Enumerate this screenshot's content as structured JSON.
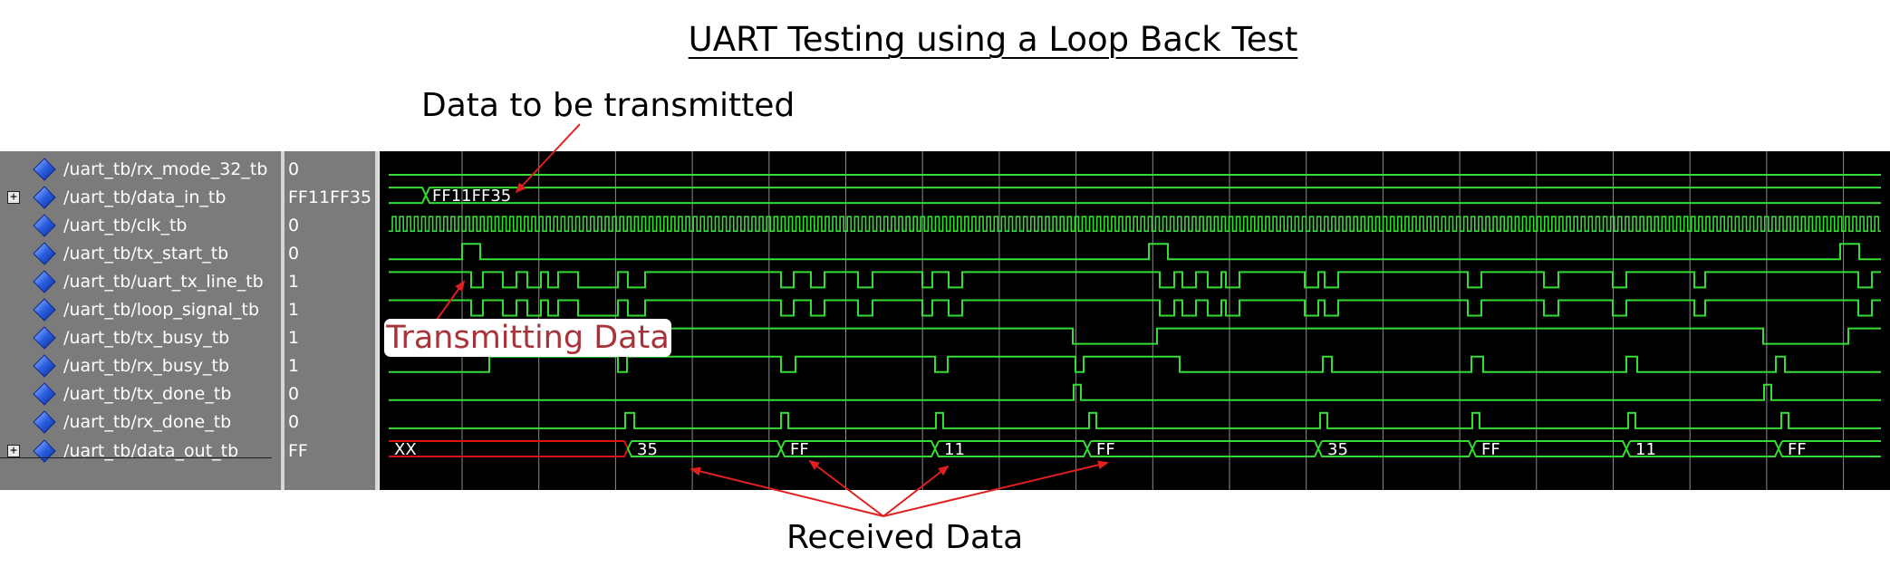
{
  "title": "UART Testing using a Loop Back Test",
  "annotations": {
    "data_to_transmit": "Data to be transmitted",
    "transmitting": "Transmitting Data",
    "received": "Received Data"
  },
  "signals": [
    {
      "name": "/uart_tb/rx_mode_32_tb",
      "value": "0",
      "bus": false
    },
    {
      "name": "/uart_tb/data_in_tb",
      "value": "FF11FF35",
      "bus": true
    },
    {
      "name": "/uart_tb/clk_tb",
      "value": "0",
      "bus": false
    },
    {
      "name": "/uart_tb/tx_start_tb",
      "value": "0",
      "bus": false
    },
    {
      "name": "/uart_tb/uart_tx_line_tb",
      "value": "1",
      "bus": false
    },
    {
      "name": "/uart_tb/loop_signal_tb",
      "value": "1",
      "bus": false
    },
    {
      "name": "/uart_tb/tx_busy_tb",
      "value": "1",
      "bus": false
    },
    {
      "name": "/uart_tb/rx_busy_tb",
      "value": "1",
      "bus": false
    },
    {
      "name": "/uart_tb/tx_done_tb",
      "value": "0",
      "bus": false
    },
    {
      "name": "/uart_tb/rx_done_tb",
      "value": "0",
      "bus": false
    },
    {
      "name": "/uart_tb/data_out_tb",
      "value": "FF",
      "bus": true
    }
  ],
  "bus_labels": {
    "data_in": "FF11FF35",
    "data_out": [
      "XX",
      "35",
      "FF",
      "11",
      "FF",
      "35",
      "FF",
      "11",
      "FF"
    ]
  },
  "colors": {
    "wave": "#33dd33",
    "undefined": "#dd1111",
    "panel": "#7b7b7b",
    "background": "#000000",
    "annotation_arrow": "#e02020",
    "callout_text": "#a8343b"
  },
  "icons": {
    "signal": "blue-diamond-icon",
    "expand": "plus-box-icon"
  }
}
